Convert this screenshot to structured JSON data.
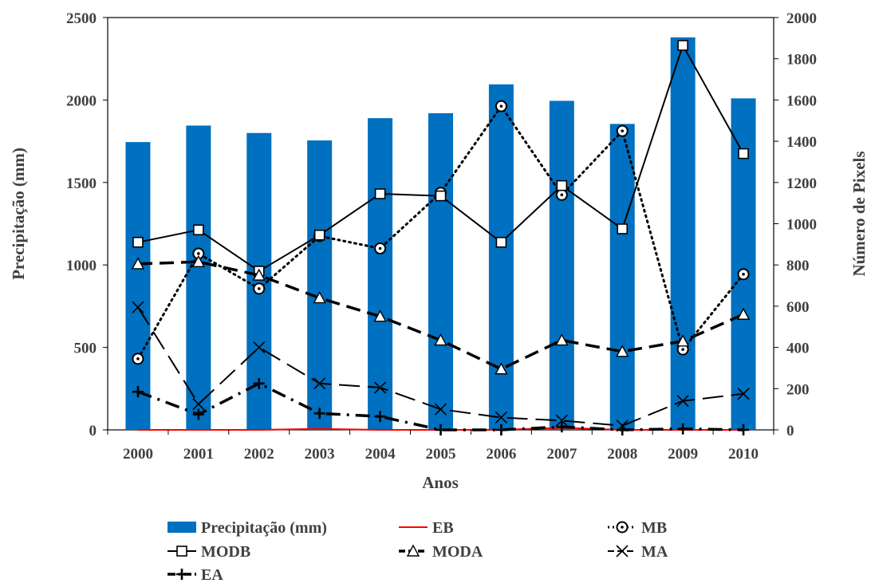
{
  "chart_data": {
    "type": "bar+line",
    "title": "",
    "xlabel": "Anos",
    "ylabel_left": "Precipitação (mm)",
    "ylabel_right": "Número de Pixels",
    "ylim_left": [
      0,
      2500
    ],
    "ylim_right": [
      0,
      2000
    ],
    "yticks_left": [
      0,
      500,
      1000,
      1500,
      2000,
      2500
    ],
    "yticks_right": [
      0,
      200,
      400,
      600,
      800,
      1000,
      1200,
      1400,
      1600,
      1800,
      2000
    ],
    "categories": [
      "2000",
      "2001",
      "2002",
      "2003",
      "2004",
      "2005",
      "2006",
      "2007",
      "2008",
      "2009",
      "2010"
    ],
    "grid": false,
    "legend_position": "bottom",
    "bars": {
      "name": "Precipitação (mm)",
      "axis": "left",
      "color": "#0070C0",
      "values": [
        1745,
        1845,
        1800,
        1755,
        1890,
        1920,
        2095,
        1995,
        1855,
        2380,
        2010
      ]
    },
    "series": [
      {
        "name": "EB",
        "axis": "right",
        "color": "#FF0000",
        "line": "solid",
        "marker": "none",
        "values": [
          0,
          0,
          0,
          5,
          0,
          0,
          0,
          10,
          0,
          0,
          0
        ]
      },
      {
        "name": "MB",
        "axis": "right",
        "color": "#000000",
        "line": "dotted",
        "marker": "circle-dot",
        "values": [
          345,
          855,
          685,
          940,
          880,
          1150,
          1570,
          1140,
          1450,
          390,
          755
        ]
      },
      {
        "name": "MODB",
        "axis": "right",
        "color": "#000000",
        "line": "solid",
        "marker": "square",
        "values": [
          910,
          970,
          770,
          945,
          1145,
          1135,
          910,
          1185,
          975,
          1865,
          1340
        ]
      },
      {
        "name": "MODA",
        "axis": "right",
        "color": "#000000",
        "line": "dash",
        "marker": "triangle",
        "values": [
          805,
          815,
          750,
          640,
          550,
          435,
          295,
          435,
          380,
          430,
          560
        ]
      },
      {
        "name": "MA",
        "axis": "right",
        "color": "#000000",
        "line": "longdash",
        "marker": "x",
        "values": [
          595,
          125,
          400,
          225,
          205,
          100,
          60,
          45,
          20,
          140,
          175
        ]
      },
      {
        "name": "EA",
        "axis": "right",
        "color": "#000000",
        "line": "dashdot",
        "marker": "plus",
        "values": [
          185,
          75,
          225,
          80,
          65,
          0,
          0,
          15,
          0,
          5,
          0
        ]
      }
    ]
  }
}
